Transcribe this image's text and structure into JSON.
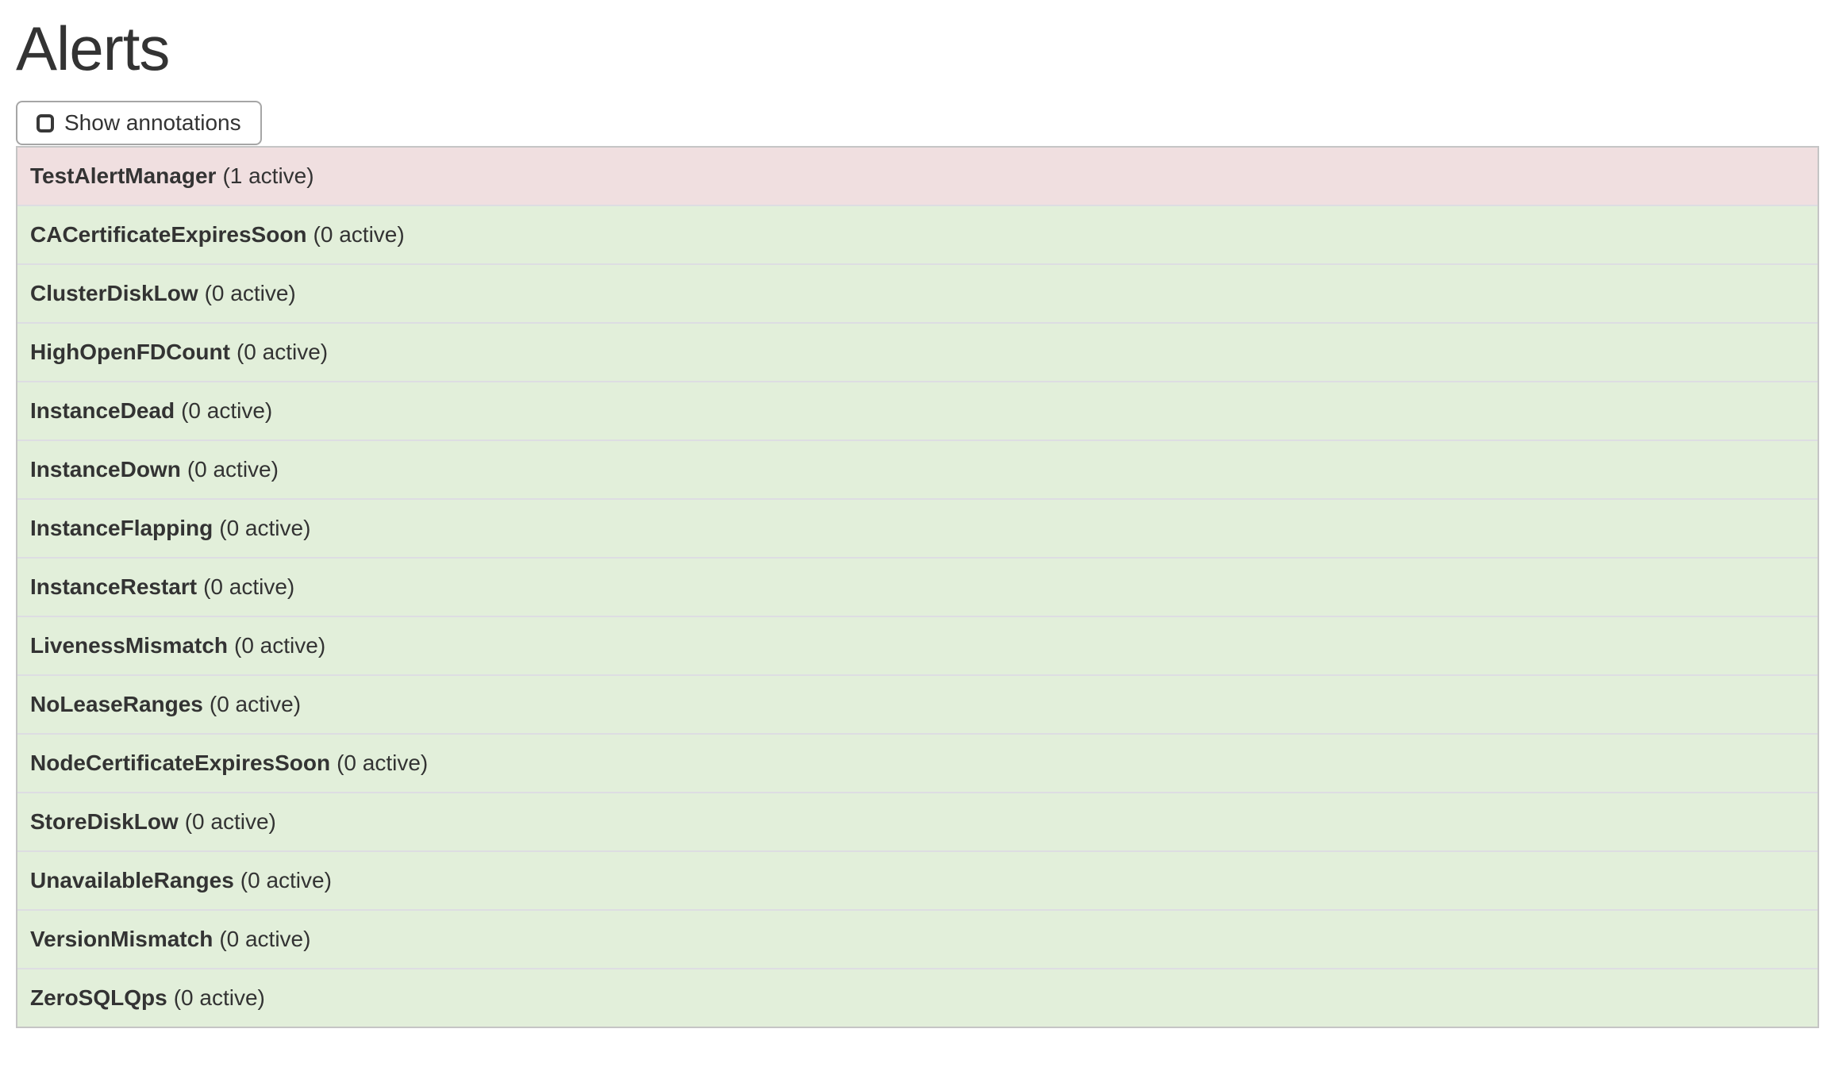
{
  "page": {
    "title": "Alerts"
  },
  "toolbar": {
    "show_annotations_label": "Show annotations",
    "checkbox_checked": false
  },
  "colors": {
    "firing_bg": "#f0dfe0",
    "ok_bg": "#e2efda",
    "row_divider": "#dddde2",
    "list_border": "#c5c5c5",
    "text": "#333333"
  },
  "alerts": [
    {
      "name": "TestAlertManager",
      "active_count": 1,
      "count_label": "(1 active)",
      "state": "firing"
    },
    {
      "name": "CACertificateExpiresSoon",
      "active_count": 0,
      "count_label": "(0 active)",
      "state": "inactive"
    },
    {
      "name": "ClusterDiskLow",
      "active_count": 0,
      "count_label": "(0 active)",
      "state": "inactive"
    },
    {
      "name": "HighOpenFDCount",
      "active_count": 0,
      "count_label": "(0 active)",
      "state": "inactive"
    },
    {
      "name": "InstanceDead",
      "active_count": 0,
      "count_label": "(0 active)",
      "state": "inactive"
    },
    {
      "name": "InstanceDown",
      "active_count": 0,
      "count_label": "(0 active)",
      "state": "inactive"
    },
    {
      "name": "InstanceFlapping",
      "active_count": 0,
      "count_label": "(0 active)",
      "state": "inactive"
    },
    {
      "name": "InstanceRestart",
      "active_count": 0,
      "count_label": "(0 active)",
      "state": "inactive"
    },
    {
      "name": "LivenessMismatch",
      "active_count": 0,
      "count_label": "(0 active)",
      "state": "inactive"
    },
    {
      "name": "NoLeaseRanges",
      "active_count": 0,
      "count_label": "(0 active)",
      "state": "inactive"
    },
    {
      "name": "NodeCertificateExpiresSoon",
      "active_count": 0,
      "count_label": "(0 active)",
      "state": "inactive"
    },
    {
      "name": "StoreDiskLow",
      "active_count": 0,
      "count_label": "(0 active)",
      "state": "inactive"
    },
    {
      "name": "UnavailableRanges",
      "active_count": 0,
      "count_label": "(0 active)",
      "state": "inactive"
    },
    {
      "name": "VersionMismatch",
      "active_count": 0,
      "count_label": "(0 active)",
      "state": "inactive"
    },
    {
      "name": "ZeroSQLQps",
      "active_count": 0,
      "count_label": "(0 active)",
      "state": "inactive"
    }
  ]
}
